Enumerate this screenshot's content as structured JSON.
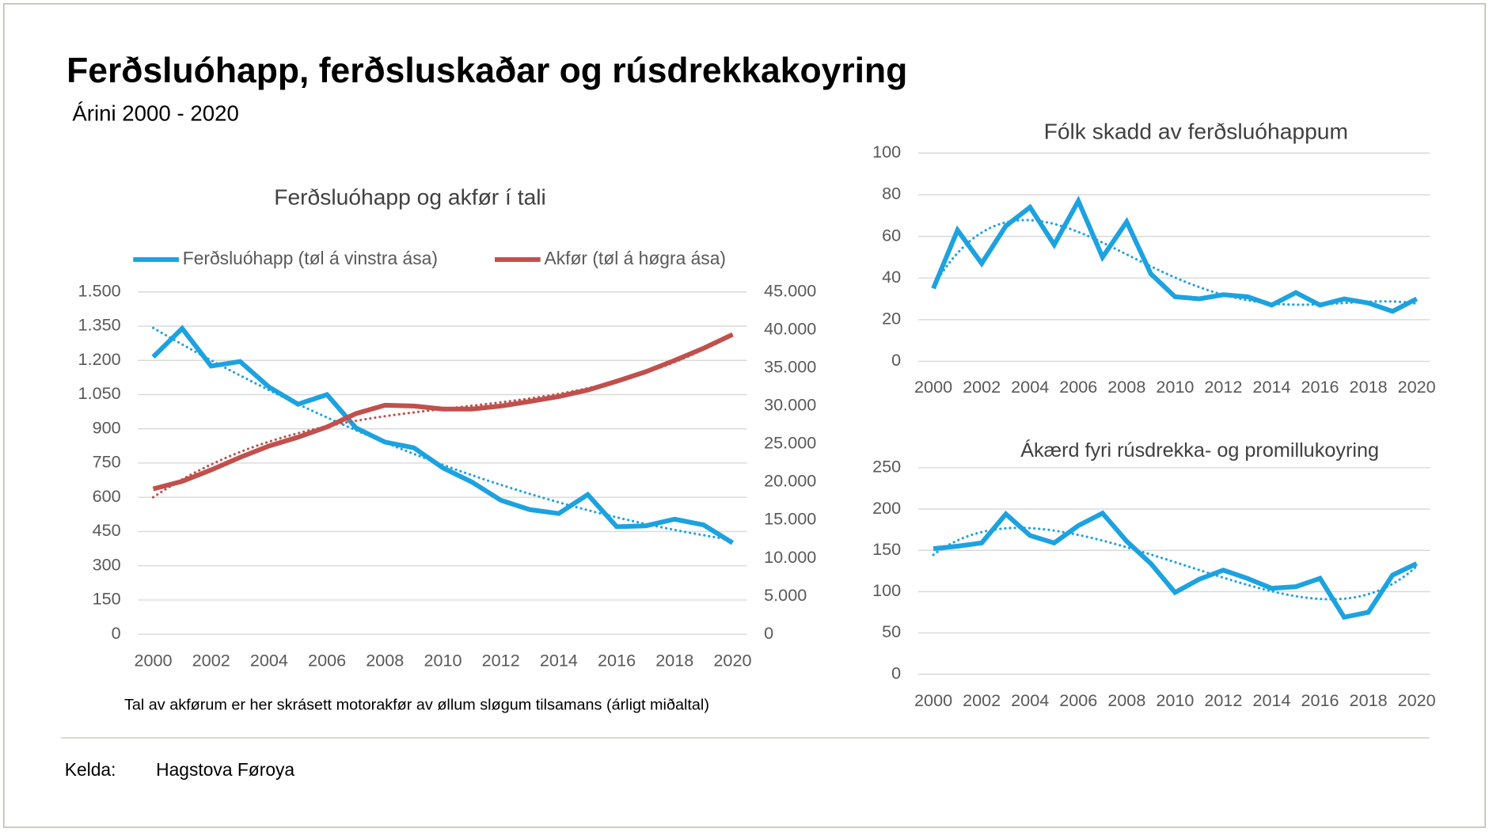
{
  "title": "Ferðsluóhapp, ferðsluskaðar og rúsdrekkakoyring",
  "subtitle": "Árini 2000 - 2020",
  "chart_data": [
    {
      "type": "line",
      "title": "Ferðsluóhapp og akfør í tali",
      "legend": "top",
      "note": "Tal av akførum er her skrásett motorakfør av øllum sløgum tilsamans (árligt miðaltal)",
      "x": [
        2000,
        2001,
        2002,
        2003,
        2004,
        2005,
        2006,
        2007,
        2008,
        2009,
        2010,
        2011,
        2012,
        2013,
        2014,
        2015,
        2016,
        2017,
        2018,
        2019,
        2020
      ],
      "xlim": [
        2000,
        2020
      ],
      "xticks": [
        2000,
        2002,
        2004,
        2006,
        2008,
        2010,
        2012,
        2014,
        2016,
        2018,
        2020
      ],
      "ylim": [
        0,
        1500
      ],
      "yticks": [
        {
          "value": 0,
          "label": "0"
        },
        {
          "value": 150,
          "label": "150"
        },
        {
          "value": 300,
          "label": "300"
        },
        {
          "value": 450,
          "label": "450"
        },
        {
          "value": 600,
          "label": "600"
        },
        {
          "value": 750,
          "label": "750"
        },
        {
          "value": 900,
          "label": "900"
        },
        {
          "value": 1050,
          "label": "1.050"
        },
        {
          "value": 1200,
          "label": "1.200"
        },
        {
          "value": 1350,
          "label": "1.350"
        },
        {
          "value": 1500,
          "label": "1.500"
        }
      ],
      "y2lim": [
        0,
        45000
      ],
      "y2ticks": [
        {
          "value": 0,
          "label": "0"
        },
        {
          "value": 5000,
          "label": "5.000"
        },
        {
          "value": 10000,
          "label": "10.000"
        },
        {
          "value": 15000,
          "label": "15.000"
        },
        {
          "value": 20000,
          "label": "20.000"
        },
        {
          "value": 25000,
          "label": "25.000"
        },
        {
          "value": 30000,
          "label": "30.000"
        },
        {
          "value": 35000,
          "label": "35.000"
        },
        {
          "value": 40000,
          "label": "40.000"
        },
        {
          "value": 45000,
          "label": "45.000"
        }
      ],
      "grid": true,
      "series": [
        {
          "name": "Ferðsluóhapp (tøl á vinstra ása)",
          "color": "#1da2e0",
          "trend_order": 2,
          "values": [
            1215,
            1340,
            1175,
            1195,
            1083,
            1008,
            1050,
            904,
            842,
            817,
            729,
            667,
            587,
            546,
            529,
            612,
            471,
            475,
            504,
            479,
            400
          ]
        },
        {
          "name": "Akfør (tøl á høgra ása)",
          "color": "#c0504d",
          "axis": "y2",
          "trend_order": 3,
          "values": [
            19100,
            20100,
            21600,
            23250,
            24750,
            25900,
            27250,
            29000,
            30100,
            30000,
            29600,
            29600,
            30000,
            30600,
            31250,
            32100,
            33250,
            34500,
            36000,
            37600,
            39400
          ]
        }
      ]
    },
    {
      "type": "line",
      "title": "Fólk skadd av ferðsluóhappum",
      "x": [
        2000,
        2001,
        2002,
        2003,
        2004,
        2005,
        2006,
        2007,
        2008,
        2009,
        2010,
        2011,
        2012,
        2013,
        2014,
        2015,
        2016,
        2017,
        2018,
        2019,
        2020
      ],
      "xlim": [
        2000,
        2020
      ],
      "xticks": [
        2000,
        2002,
        2004,
        2006,
        2008,
        2010,
        2012,
        2014,
        2016,
        2018,
        2020
      ],
      "ylim": [
        0,
        100
      ],
      "yticks": [
        0,
        20,
        40,
        60,
        80,
        100
      ],
      "grid": true,
      "series": [
        {
          "color": "#1da2e0",
          "trend_order": 4,
          "values": [
            35,
            63,
            47,
            65,
            74,
            56,
            77,
            50,
            67,
            42,
            31,
            30,
            32,
            31,
            27,
            33,
            27,
            30,
            28,
            24,
            30
          ]
        }
      ]
    },
    {
      "type": "line",
      "title": "Ákærd fyri rúsdrekka- og promillukoyring",
      "x": [
        2000,
        2001,
        2002,
        2003,
        2004,
        2005,
        2006,
        2007,
        2008,
        2009,
        2010,
        2011,
        2012,
        2013,
        2014,
        2015,
        2016,
        2017,
        2018,
        2019,
        2020
      ],
      "xlim": [
        2000,
        2020
      ],
      "xticks": [
        2000,
        2002,
        2004,
        2006,
        2008,
        2010,
        2012,
        2014,
        2016,
        2018,
        2020
      ],
      "ylim": [
        0,
        250
      ],
      "yticks": [
        0,
        50,
        100,
        150,
        200,
        250
      ],
      "grid": true,
      "series": [
        {
          "color": "#1da2e0",
          "trend_order": 5,
          "values": [
            152,
            155,
            159,
            194,
            168,
            159,
            180,
            195,
            161,
            134,
            99,
            115,
            126,
            116,
            104,
            106,
            116,
            69,
            75,
            120,
            134
          ]
        }
      ]
    }
  ],
  "source_label": "Kelda:",
  "source": "Hagstova Føroya"
}
